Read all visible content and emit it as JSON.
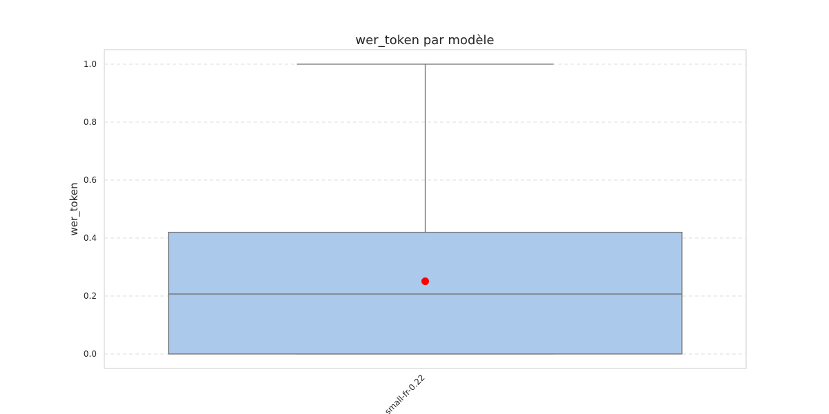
{
  "chart_data": {
    "type": "box",
    "title": "wer_token par modèle",
    "xlabel": "",
    "ylabel": "wer_token",
    "categories": [
      "small-fr-0.22"
    ],
    "boxes": [
      {
        "category": "small-fr-0.22",
        "whisker_low": 0.0,
        "q1": 0.0,
        "median": 0.207,
        "q3": 0.42,
        "whisker_high": 1.0,
        "mean": 0.251
      }
    ],
    "ylim": [
      -0.05,
      1.05
    ],
    "yticks": [
      "0.0",
      "0.2",
      "0.4",
      "0.6",
      "0.8",
      "1.0"
    ],
    "grid": true,
    "grid_axis": "y",
    "colors": {
      "box_fill": "#abc9ea",
      "box_edge": "#707070",
      "mean_marker": "#ff0000",
      "grid": "#dddddd",
      "frame": "#cccccc"
    }
  }
}
